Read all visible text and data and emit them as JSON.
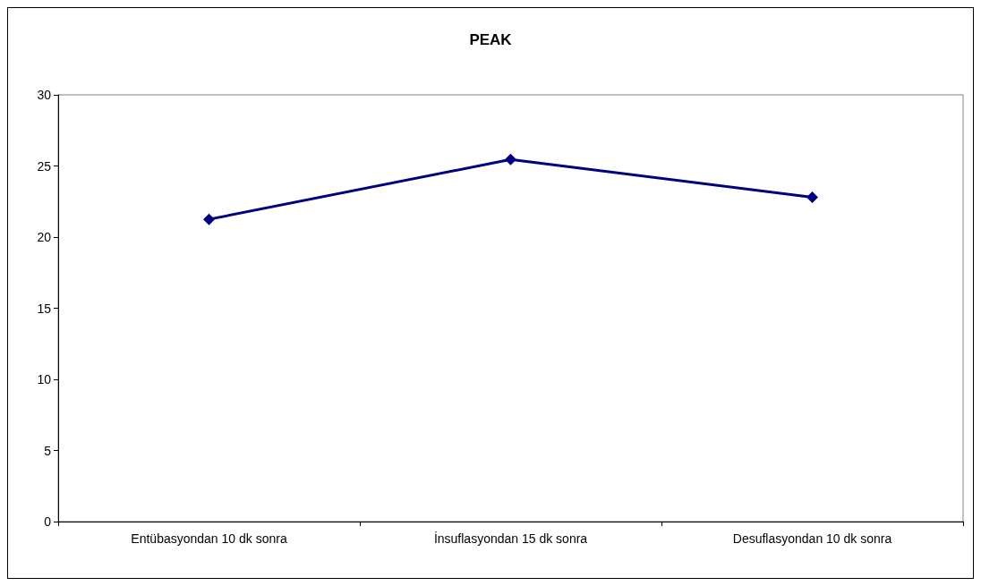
{
  "chart_data": {
    "type": "line",
    "title": "PEAK",
    "categories": [
      "Entübasyondan 10 dk sonra",
      "İnsuflasyondan 15 dk sonra",
      "Desuflasyondan 10 dk sonra"
    ],
    "series": [
      {
        "color": "#000080",
        "values": [
          21.25,
          25.45,
          22.8
        ]
      }
    ],
    "ylim": [
      0,
      30
    ],
    "yticks": [
      0,
      5,
      10,
      15,
      20,
      25,
      30
    ],
    "grid": false,
    "marker": "diamond",
    "line_style": "solid"
  }
}
